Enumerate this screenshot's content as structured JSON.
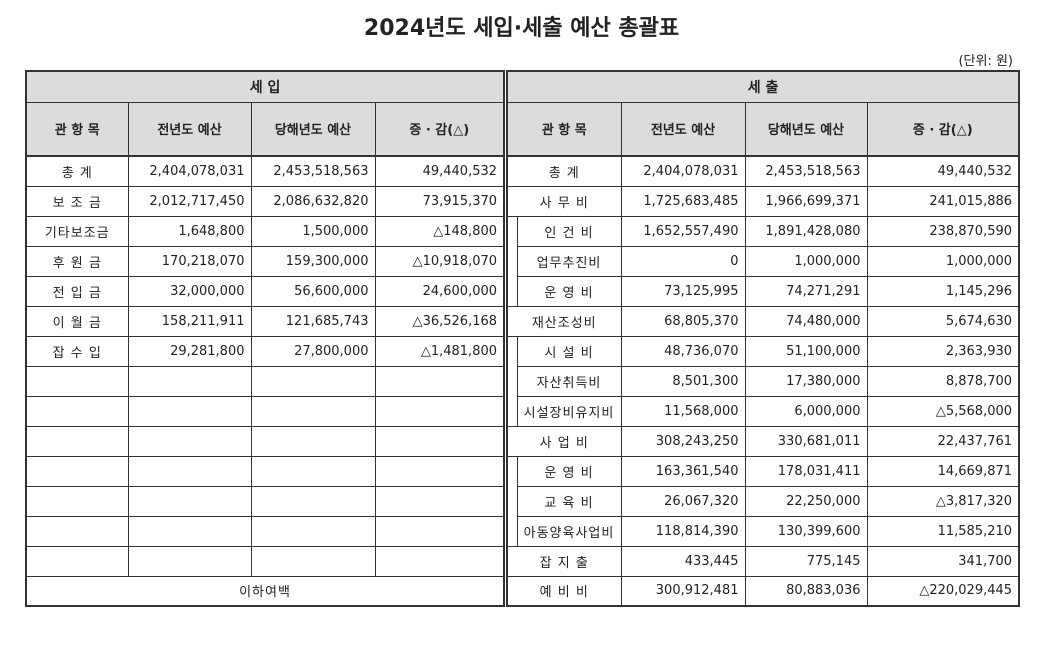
{
  "title": "2024년도 세입·세출 예산 총괄표",
  "unit": "(단위: 원)",
  "columns": {
    "item": "관 항 목",
    "prev": "전년도 예산",
    "curr": "당해년도 예산",
    "diff": "증 · 감(△)"
  },
  "revenue": {
    "heading": "세 입",
    "rows": [
      {
        "item": "총 계",
        "prev": "2,404,078,031",
        "curr": "2,453,518,563",
        "diff": "49,440,532"
      },
      {
        "item": "보 조 금",
        "prev": "2,012,717,450",
        "curr": "2,086,632,820",
        "diff": "73,915,370"
      },
      {
        "item": "기타보조금",
        "prev": "1,648,800",
        "curr": "1,500,000",
        "diff": "△148,800"
      },
      {
        "item": "후 원 금",
        "prev": "170,218,070",
        "curr": "159,300,000",
        "diff": "△10,918,070"
      },
      {
        "item": "전 입 금",
        "prev": "32,000,000",
        "curr": "56,600,000",
        "diff": "24,600,000"
      },
      {
        "item": "이 월 금",
        "prev": "158,211,911",
        "curr": "121,685,743",
        "diff": "△36,526,168"
      },
      {
        "item": "잡 수 입",
        "prev": "29,281,800",
        "curr": "27,800,000",
        "diff": "△1,481,800"
      }
    ],
    "footer": "이하여백"
  },
  "expenditure": {
    "heading": "세 출",
    "rows": [
      {
        "item": "총 계",
        "prev": "2,404,078,031",
        "curr": "2,453,518,563",
        "diff": "49,440,532",
        "indent": false
      },
      {
        "item": "사 무 비",
        "prev": "1,725,683,485",
        "curr": "1,966,699,371",
        "diff": "241,015,886",
        "indent": false
      },
      {
        "item": "인 건 비",
        "prev": "1,652,557,490",
        "curr": "1,891,428,080",
        "diff": "238,870,590",
        "indent": true
      },
      {
        "item": "업무추진비",
        "prev": "0",
        "curr": "1,000,000",
        "diff": "1,000,000",
        "indent": true
      },
      {
        "item": "운 영 비",
        "prev": "73,125,995",
        "curr": "74,271,291",
        "diff": "1,145,296",
        "indent": true
      },
      {
        "item": "재산조성비",
        "prev": "68,805,370",
        "curr": "74,480,000",
        "diff": "5,674,630",
        "indent": false
      },
      {
        "item": "시 설 비",
        "prev": "48,736,070",
        "curr": "51,100,000",
        "diff": "2,363,930",
        "indent": true
      },
      {
        "item": "자산취득비",
        "prev": "8,501,300",
        "curr": "17,380,000",
        "diff": "8,878,700",
        "indent": true
      },
      {
        "item": "시설장비유지비",
        "prev": "11,568,000",
        "curr": "6,000,000",
        "diff": "△5,568,000",
        "indent": true
      },
      {
        "item": "사 업 비",
        "prev": "308,243,250",
        "curr": "330,681,011",
        "diff": "22,437,761",
        "indent": false
      },
      {
        "item": "운 영 비",
        "prev": "163,361,540",
        "curr": "178,031,411",
        "diff": "14,669,871",
        "indent": true
      },
      {
        "item": "교 육 비",
        "prev": "26,067,320",
        "curr": "22,250,000",
        "diff": "△3,817,320",
        "indent": true
      },
      {
        "item": "아동양육사업비",
        "prev": "118,814,390",
        "curr": "130,399,600",
        "diff": "11,585,210",
        "indent": true
      },
      {
        "item": "잡 지 출",
        "prev": "433,445",
        "curr": "775,145",
        "diff": "341,700",
        "indent": false
      },
      {
        "item": "예 비 비",
        "prev": "300,912,481",
        "curr": "80,883,036",
        "diff": "△220,029,445",
        "indent": false
      }
    ]
  }
}
